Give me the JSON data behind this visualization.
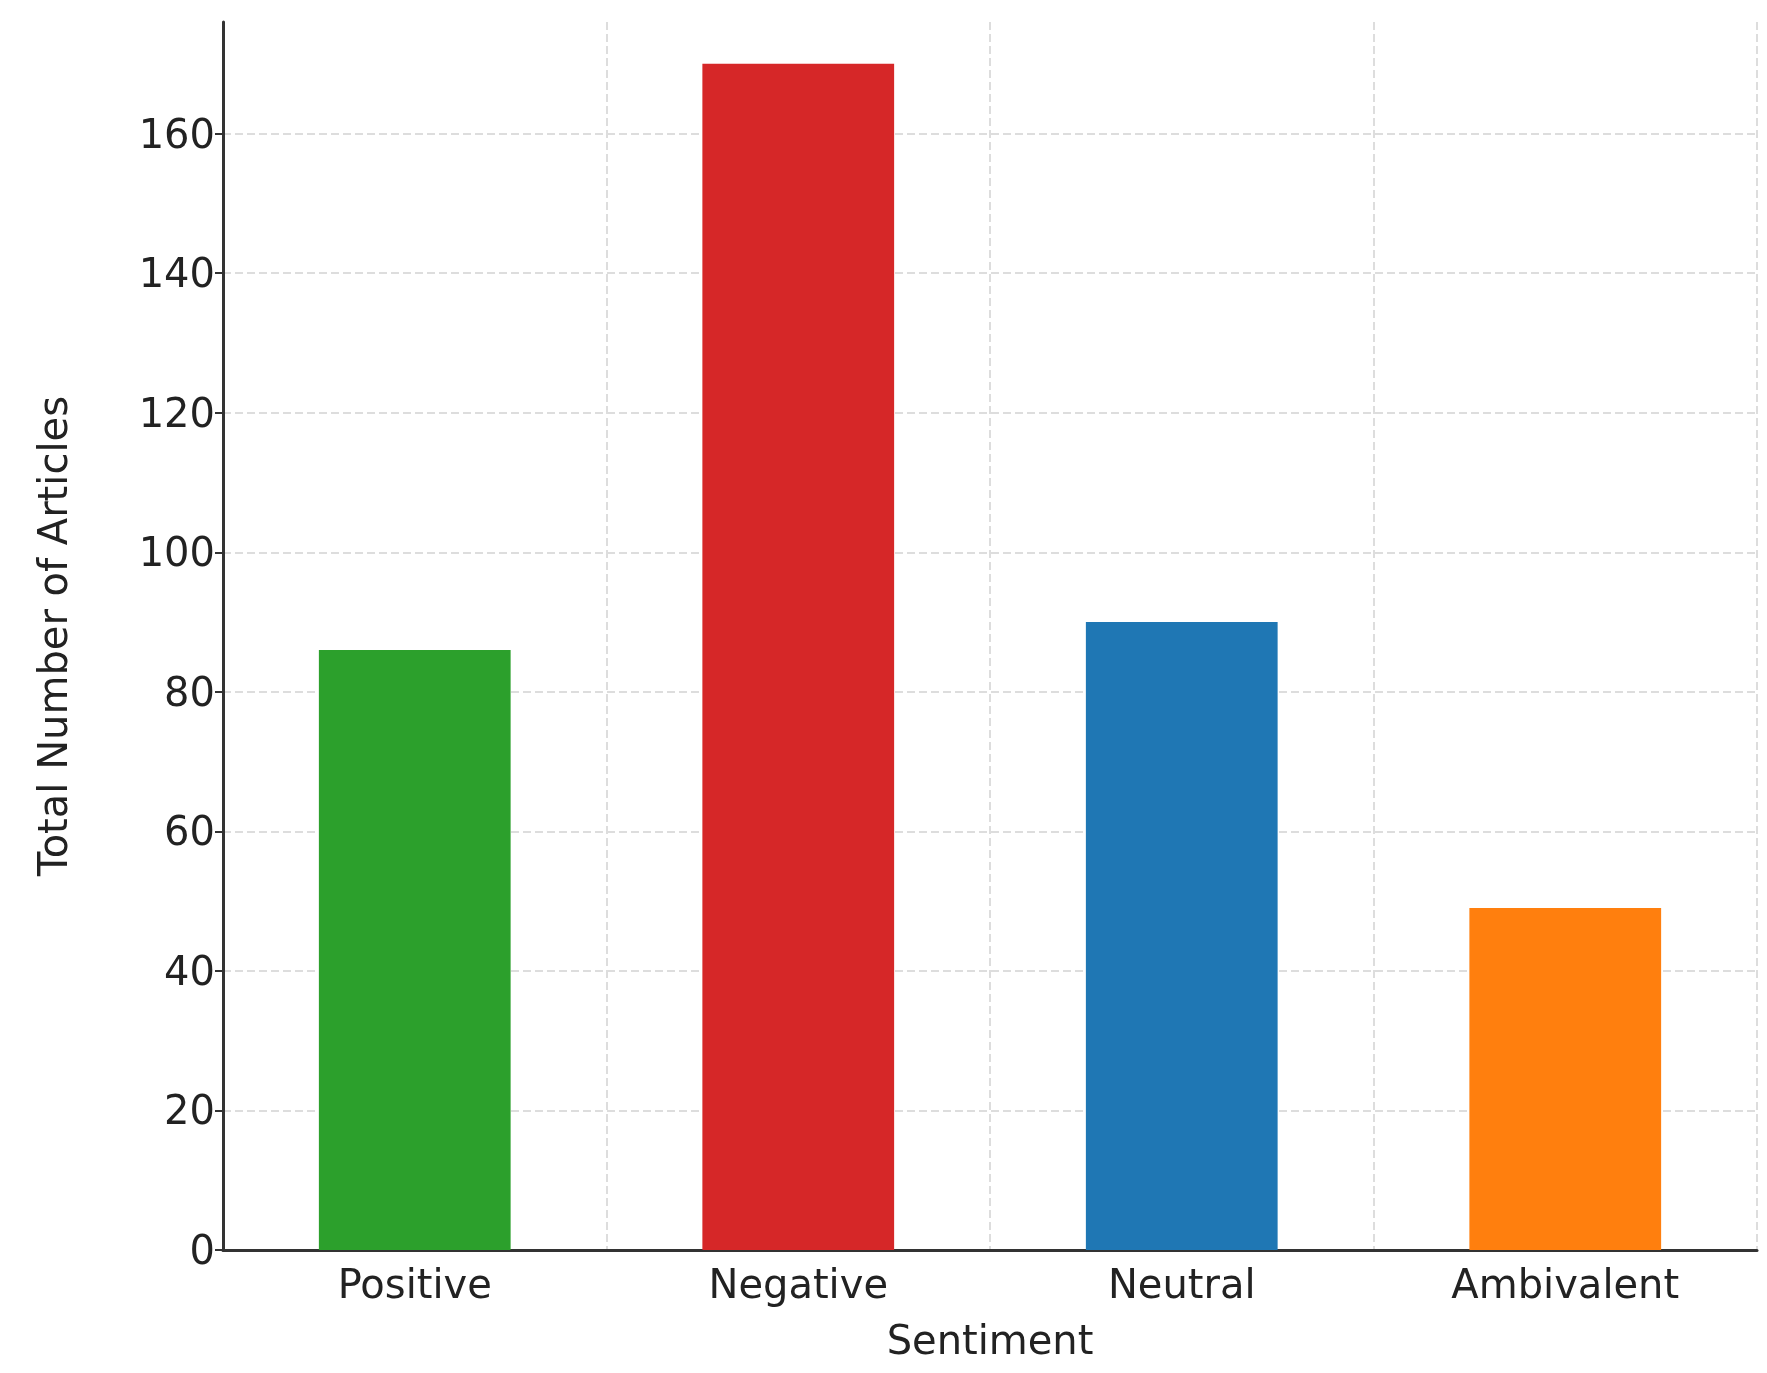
{
  "chart_data": {
    "type": "bar",
    "xlabel": "Sentiment",
    "ylabel": "Total Number of Articles",
    "categories": [
      "Positive",
      "Negative",
      "Neutral",
      "Ambivalent"
    ],
    "values": [
      86,
      170,
      90,
      49
    ],
    "colors": [
      "#2ca02c",
      "#d62728",
      "#1f77b4",
      "#ff7f0e"
    ],
    "ylim": [
      0,
      176
    ],
    "yticks": [
      0,
      20,
      40,
      60,
      80,
      100,
      120,
      140,
      160
    ],
    "grid": true
  }
}
